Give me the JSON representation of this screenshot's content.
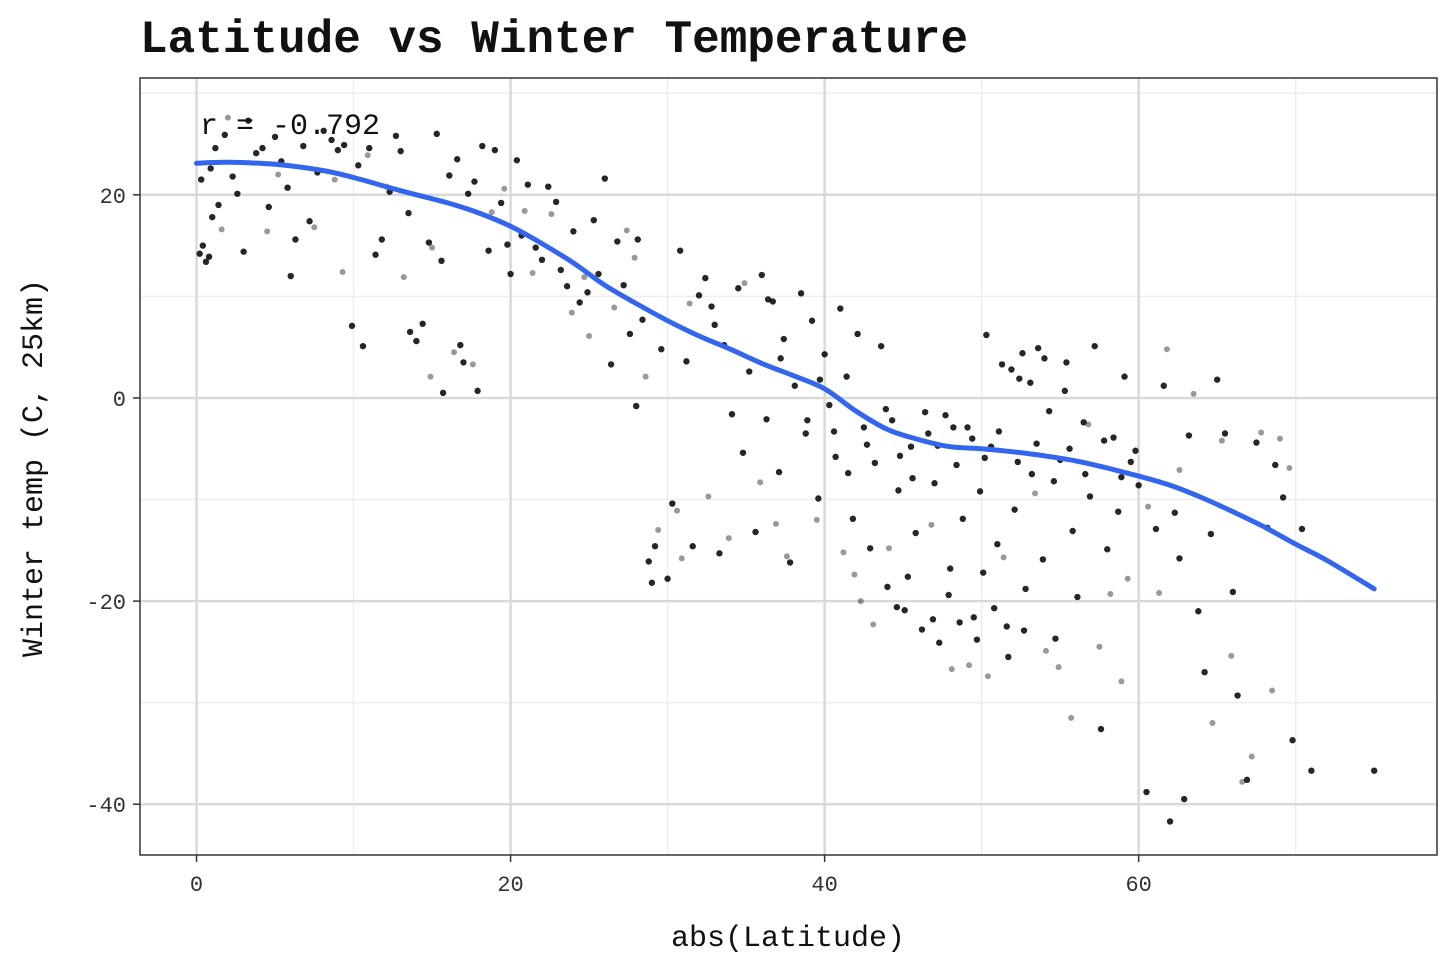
{
  "chart_data": {
    "type": "scatter",
    "title": "Latitude vs Winter Temperature",
    "xlabel": "abs(Latitude)",
    "ylabel": "Winter temp (C, 25km)",
    "annotation": "r = -0.792",
    "xlim": [
      -3.6,
      79
    ],
    "ylim": [
      -45,
      31.5
    ],
    "x_ticks": [
      0,
      20,
      40,
      60
    ],
    "y_ticks": [
      -40,
      -20,
      0,
      20
    ],
    "grid": true,
    "legend": "none",
    "colors": {
      "points": "#000000",
      "trend": "#3366ee",
      "grid_major": "#d9d9d9",
      "grid_minor": "#ededed",
      "panel_border": "#333333"
    },
    "series": [
      {
        "type": "smooth",
        "values": [
          [
            0,
            23.1
          ],
          [
            2,
            23.2
          ],
          [
            5,
            23.0
          ],
          [
            8,
            22.4
          ],
          [
            10,
            21.7
          ],
          [
            13,
            20.4
          ],
          [
            16,
            19.2
          ],
          [
            18,
            18.2
          ],
          [
            20,
            16.9
          ],
          [
            22,
            15.2
          ],
          [
            24,
            13.3
          ],
          [
            26,
            11.1
          ],
          [
            28,
            9.3
          ],
          [
            30,
            7.6
          ],
          [
            32,
            6.1
          ],
          [
            34,
            4.8
          ],
          [
            36,
            3.4
          ],
          [
            38,
            2.2
          ],
          [
            40,
            0.9
          ],
          [
            42,
            -1.3
          ],
          [
            44,
            -3.1
          ],
          [
            46,
            -4.1
          ],
          [
            48,
            -4.8
          ],
          [
            50,
            -5.0
          ],
          [
            52,
            -5.3
          ],
          [
            54,
            -5.7
          ],
          [
            56,
            -6.2
          ],
          [
            58,
            -6.9
          ],
          [
            60,
            -7.7
          ],
          [
            62,
            -8.6
          ],
          [
            64,
            -9.8
          ],
          [
            66,
            -11.2
          ],
          [
            68,
            -12.7
          ],
          [
            70,
            -14.4
          ],
          [
            72,
            -16.0
          ],
          [
            75,
            -18.8
          ]
        ]
      }
    ],
    "points": [
      [
        0.2,
        14.2
      ],
      [
        0.4,
        15.0
      ],
      [
        0.6,
        13.4
      ],
      [
        0.8,
        13.9
      ],
      [
        0.3,
        21.5
      ],
      [
        0.9,
        22.6
      ],
      [
        1.0,
        17.8
      ],
      [
        1.4,
        19.0
      ],
      [
        1.2,
        24.6
      ],
      [
        1.8,
        25.9
      ],
      [
        2.3,
        21.8
      ],
      [
        2.6,
        20.1
      ],
      [
        3.0,
        14.4
      ],
      [
        3.3,
        27.3
      ],
      [
        3.8,
        24.1
      ],
      [
        4.2,
        24.6
      ],
      [
        4.6,
        18.8
      ],
      [
        5.0,
        25.7
      ],
      [
        5.4,
        23.3
      ],
      [
        5.8,
        20.7
      ],
      [
        6.0,
        12.0
      ],
      [
        6.3,
        15.6
      ],
      [
        6.8,
        24.8
      ],
      [
        7.2,
        17.4
      ],
      [
        7.7,
        22.2
      ],
      [
        8.1,
        26.3
      ],
      [
        8.6,
        25.4
      ],
      [
        9.0,
        24.4
      ],
      [
        9.4,
        24.9
      ],
      [
        9.9,
        7.1
      ],
      [
        10.3,
        22.9
      ],
      [
        10.6,
        5.1
      ],
      [
        11.0,
        24.6
      ],
      [
        11.4,
        14.1
      ],
      [
        11.8,
        15.6
      ],
      [
        12.3,
        20.3
      ],
      [
        12.7,
        25.8
      ],
      [
        13.0,
        24.3
      ],
      [
        13.5,
        18.2
      ],
      [
        13.6,
        6.5
      ],
      [
        14.0,
        5.6
      ],
      [
        14.4,
        7.3
      ],
      [
        14.8,
        15.3
      ],
      [
        15.3,
        26.0
      ],
      [
        15.6,
        13.5
      ],
      [
        15.7,
        0.5
      ],
      [
        16.1,
        21.9
      ],
      [
        16.6,
        23.5
      ],
      [
        16.8,
        5.2
      ],
      [
        17.0,
        3.5
      ],
      [
        17.3,
        20.1
      ],
      [
        17.7,
        21.3
      ],
      [
        17.9,
        0.7
      ],
      [
        18.2,
        24.8
      ],
      [
        18.6,
        14.5
      ],
      [
        19.0,
        24.4
      ],
      [
        19.4,
        19.2
      ],
      [
        19.8,
        15.1
      ],
      [
        20.0,
        12.2
      ],
      [
        20.4,
        23.4
      ],
      [
        20.7,
        16.0
      ],
      [
        21.1,
        21.0
      ],
      [
        21.6,
        14.8
      ],
      [
        22.0,
        13.6
      ],
      [
        22.4,
        20.8
      ],
      [
        22.9,
        19.3
      ],
      [
        23.2,
        12.6
      ],
      [
        23.6,
        11.0
      ],
      [
        24.0,
        16.4
      ],
      [
        24.4,
        9.4
      ],
      [
        24.9,
        10.4
      ],
      [
        25.3,
        17.5
      ],
      [
        25.6,
        12.2
      ],
      [
        26.0,
        21.6
      ],
      [
        26.4,
        3.3
      ],
      [
        26.8,
        15.4
      ],
      [
        27.2,
        11.1
      ],
      [
        27.6,
        6.3
      ],
      [
        28.1,
        15.6
      ],
      [
        28.0,
        -0.8
      ],
      [
        28.4,
        7.7
      ],
      [
        28.8,
        -16.1
      ],
      [
        29.0,
        -18.2
      ],
      [
        29.2,
        -14.6
      ],
      [
        29.6,
        4.8
      ],
      [
        30.0,
        -17.8
      ],
      [
        30.3,
        -10.4
      ],
      [
        30.8,
        14.5
      ],
      [
        31.2,
        3.6
      ],
      [
        31.6,
        -14.6
      ],
      [
        32.0,
        10.1
      ],
      [
        32.4,
        11.8
      ],
      [
        32.8,
        9.0
      ],
      [
        33.0,
        7.2
      ],
      [
        33.3,
        -15.3
      ],
      [
        33.6,
        5.2
      ],
      [
        34.1,
        -1.6
      ],
      [
        34.5,
        10.8
      ],
      [
        34.8,
        -5.4
      ],
      [
        35.2,
        2.6
      ],
      [
        35.6,
        -13.2
      ],
      [
        36.0,
        12.1
      ],
      [
        36.3,
        -2.1
      ],
      [
        36.7,
        9.5
      ],
      [
        37.1,
        -7.3
      ],
      [
        37.4,
        5.8
      ],
      [
        37.8,
        -16.2
      ],
      [
        38.1,
        1.2
      ],
      [
        38.5,
        10.3
      ],
      [
        38.8,
        -3.5
      ],
      [
        39.2,
        7.6
      ],
      [
        39.6,
        -9.9
      ],
      [
        40.0,
        4.3
      ],
      [
        40.3,
        -0.7
      ],
      [
        40.7,
        -5.8
      ],
      [
        41.0,
        8.8
      ],
      [
        41.4,
        2.1
      ],
      [
        41.8,
        -11.9
      ],
      [
        42.1,
        6.3
      ],
      [
        42.5,
        -2.9
      ],
      [
        42.9,
        -14.8
      ],
      [
        43.2,
        -6.4
      ],
      [
        43.6,
        5.1
      ],
      [
        44.0,
        -18.6
      ],
      [
        44.3,
        -2.2
      ],
      [
        44.7,
        -9.1
      ],
      [
        45.1,
        -20.9
      ],
      [
        45.5,
        -4.8
      ],
      [
        45.8,
        -13.3
      ],
      [
        46.2,
        -22.8
      ],
      [
        46.6,
        -3.5
      ],
      [
        47.0,
        -8.4
      ],
      [
        47.3,
        -24.1
      ],
      [
        47.7,
        -1.7
      ],
      [
        48.0,
        -16.8
      ],
      [
        48.4,
        -6.6
      ],
      [
        48.8,
        -11.9
      ],
      [
        49.1,
        -2.9
      ],
      [
        49.5,
        -21.6
      ],
      [
        49.9,
        -9.2
      ],
      [
        50.3,
        6.2
      ],
      [
        50.6,
        -4.8
      ],
      [
        51.0,
        -14.4
      ],
      [
        51.3,
        3.3
      ],
      [
        51.7,
        -25.5
      ],
      [
        52.1,
        -11.0
      ],
      [
        52.4,
        1.9
      ],
      [
        52.8,
        -18.8
      ],
      [
        53.2,
        -7.5
      ],
      [
        53.6,
        4.9
      ],
      [
        53.9,
        -15.9
      ],
      [
        54.3,
        -1.3
      ],
      [
        54.7,
        -23.7
      ],
      [
        55.0,
        -6.1
      ],
      [
        55.4,
        3.5
      ],
      [
        55.8,
        -13.1
      ],
      [
        56.1,
        -19.6
      ],
      [
        56.5,
        -2.4
      ],
      [
        56.9,
        -9.7
      ],
      [
        57.2,
        5.1
      ],
      [
        57.6,
        -32.6
      ],
      [
        58.0,
        -14.9
      ],
      [
        58.4,
        -3.9
      ],
      [
        58.7,
        -11.2
      ],
      [
        59.1,
        2.1
      ],
      [
        59.5,
        -6.3
      ],
      [
        60.0,
        -8.6
      ],
      [
        60.5,
        -38.8
      ],
      [
        61.1,
        -12.9
      ],
      [
        61.6,
        1.2
      ],
      [
        62.0,
        -41.7
      ],
      [
        62.3,
        -11.3
      ],
      [
        62.6,
        -15.8
      ],
      [
        62.9,
        -39.5
      ],
      [
        63.2,
        -3.7
      ],
      [
        63.8,
        -21.0
      ],
      [
        64.2,
        -27.0
      ],
      [
        64.6,
        -13.4
      ],
      [
        65.0,
        1.8
      ],
      [
        65.5,
        -3.5
      ],
      [
        66.0,
        -19.1
      ],
      [
        66.3,
        -29.3
      ],
      [
        66.9,
        -37.6
      ],
      [
        67.5,
        -4.4
      ],
      [
        68.2,
        -12.8
      ],
      [
        68.7,
        -6.6
      ],
      [
        69.2,
        -9.8
      ],
      [
        69.8,
        -33.7
      ],
      [
        70.4,
        -12.9
      ],
      [
        71.0,
        -36.7
      ],
      [
        75.0,
        -36.7
      ],
      [
        36.4,
        9.7
      ],
      [
        37.2,
        3.9
      ],
      [
        38.9,
        -2.2
      ],
      [
        39.7,
        1.8
      ],
      [
        40.6,
        -3.3
      ],
      [
        41.5,
        -7.4
      ],
      [
        42.7,
        -4.6
      ],
      [
        43.9,
        -1.1
      ],
      [
        44.8,
        -5.7
      ],
      [
        45.6,
        -7.9
      ],
      [
        46.4,
        -1.4
      ],
      [
        47.2,
        -4.7
      ],
      [
        48.2,
        -2.9
      ],
      [
        49.4,
        -4.0
      ],
      [
        50.2,
        -5.9
      ],
      [
        51.1,
        -3.3
      ],
      [
        52.3,
        -6.3
      ],
      [
        53.5,
        -4.5
      ],
      [
        54.6,
        -8.2
      ],
      [
        55.6,
        -5.0
      ],
      [
        56.6,
        -7.5
      ],
      [
        57.8,
        -4.2
      ],
      [
        58.9,
        -7.8
      ],
      [
        59.8,
        -5.2
      ],
      [
        51.9,
        2.8
      ],
      [
        53.1,
        1.5
      ],
      [
        54.0,
        3.9
      ],
      [
        52.6,
        4.4
      ],
      [
        55.3,
        0.7
      ],
      [
        48.6,
        -22.1
      ],
      [
        50.8,
        -20.7
      ],
      [
        47.9,
        -19.4
      ],
      [
        46.9,
        -21.8
      ],
      [
        49.7,
        -23.8
      ],
      [
        45.3,
        -17.6
      ],
      [
        51.6,
        -22.5
      ],
      [
        44.6,
        -20.6
      ],
      [
        52.7,
        -22.9
      ],
      [
        50.1,
        -17.2
      ]
    ],
    "points_faint": [
      [
        1.6,
        16.6
      ],
      [
        4.5,
        16.4
      ],
      [
        7.5,
        16.8
      ],
      [
        9.3,
        12.4
      ],
      [
        10.9,
        23.9
      ],
      [
        13.2,
        11.9
      ],
      [
        14.9,
        2.1
      ],
      [
        16.4,
        4.5
      ],
      [
        17.6,
        3.3
      ],
      [
        18.8,
        18.3
      ],
      [
        20.9,
        18.4
      ],
      [
        22.6,
        18.1
      ],
      [
        23.9,
        8.4
      ],
      [
        25.0,
        6.1
      ],
      [
        26.6,
        8.9
      ],
      [
        27.9,
        13.8
      ],
      [
        28.6,
        2.1
      ],
      [
        29.4,
        -13.0
      ],
      [
        30.6,
        -11.1
      ],
      [
        31.4,
        9.3
      ],
      [
        32.6,
        -9.7
      ],
      [
        33.9,
        -13.8
      ],
      [
        34.9,
        11.3
      ],
      [
        35.9,
        -8.3
      ],
      [
        36.9,
        -12.4
      ],
      [
        37.6,
        -15.6
      ],
      [
        39.5,
        -12.0
      ],
      [
        41.2,
        -15.2
      ],
      [
        41.9,
        -17.4
      ],
      [
        42.3,
        -20.0
      ],
      [
        43.1,
        -22.3
      ],
      [
        44.1,
        -14.8
      ],
      [
        46.8,
        -12.5
      ],
      [
        48.1,
        -26.7
      ],
      [
        49.2,
        -26.3
      ],
      [
        50.4,
        -27.4
      ],
      [
        51.4,
        -15.7
      ],
      [
        53.4,
        -9.4
      ],
      [
        54.1,
        -24.9
      ],
      [
        54.9,
        -26.5
      ],
      [
        55.7,
        -31.5
      ],
      [
        56.8,
        -2.6
      ],
      [
        57.5,
        -24.5
      ],
      [
        58.2,
        -19.3
      ],
      [
        58.9,
        -27.9
      ],
      [
        59.3,
        -17.8
      ],
      [
        60.6,
        -10.7
      ],
      [
        61.3,
        -19.2
      ],
      [
        61.8,
        4.8
      ],
      [
        62.6,
        -7.1
      ],
      [
        63.5,
        0.4
      ],
      [
        64.7,
        -32.0
      ],
      [
        65.3,
        -4.2
      ],
      [
        65.9,
        -25.4
      ],
      [
        66.6,
        -37.8
      ],
      [
        67.2,
        -35.3
      ],
      [
        67.8,
        -3.4
      ],
      [
        68.5,
        -28.8
      ],
      [
        69.0,
        -4.0
      ],
      [
        69.6,
        -6.9
      ],
      [
        2.0,
        27.6
      ],
      [
        5.2,
        22.0
      ],
      [
        8.8,
        21.5
      ],
      [
        12.1,
        20.8
      ],
      [
        15.0,
        14.8
      ],
      [
        19.6,
        20.6
      ],
      [
        21.4,
        12.3
      ],
      [
        24.7,
        11.9
      ],
      [
        27.4,
        16.5
      ],
      [
        30.9,
        -15.8
      ]
    ]
  }
}
